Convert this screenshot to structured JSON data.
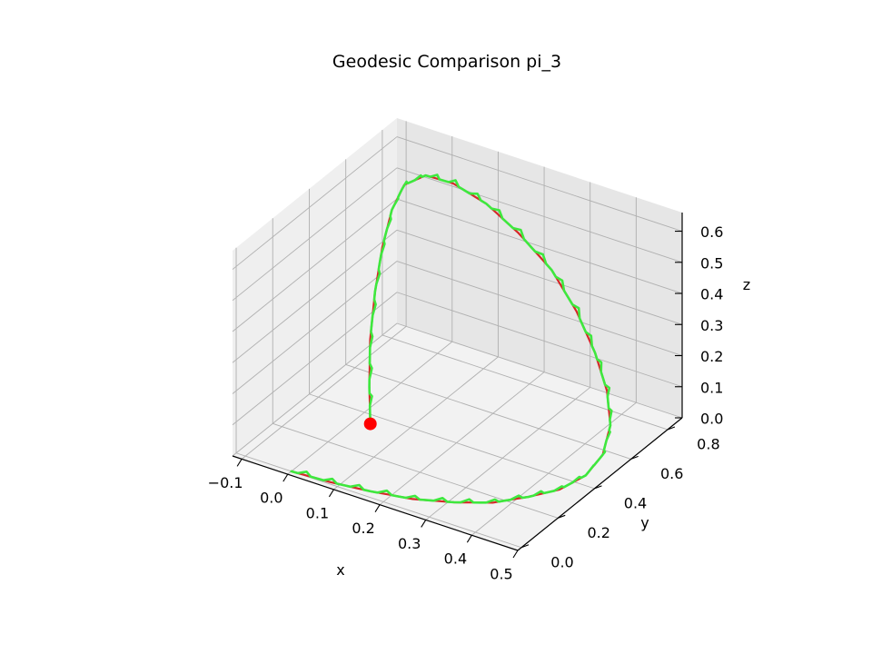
{
  "chart_data": {
    "type": "line3d",
    "title": "Geodesic Comparison pi_3",
    "xlabel": "x",
    "ylabel": "y",
    "zlabel": "z",
    "xlim": [
      -0.12,
      0.5
    ],
    "ylim": [
      -0.02,
      0.88
    ],
    "zlim": [
      0.0,
      0.66
    ],
    "x_ticks": [
      -0.1,
      0.0,
      0.1,
      0.2,
      0.3,
      0.4,
      0.5
    ],
    "x_tick_labels": [
      "−0.1",
      "0.0",
      "0.1",
      "0.2",
      "0.3",
      "0.4",
      "0.5"
    ],
    "y_ticks": [
      0.0,
      0.2,
      0.4,
      0.6,
      0.8
    ],
    "y_tick_labels": [
      "0.0",
      "0.2",
      "0.4",
      "0.6",
      "0.8"
    ],
    "z_ticks": [
      0.0,
      0.1,
      0.2,
      0.3,
      0.4,
      0.5,
      0.6
    ],
    "z_tick_labels": [
      "0.0",
      "0.1",
      "0.2",
      "0.3",
      "0.4",
      "0.5",
      "0.6"
    ],
    "grid": true,
    "series": [
      {
        "style": "line",
        "color": "#d62728",
        "points": [
          [
            0.0,
            0.0,
            0.0
          ],
          [
            0.08,
            0.01,
            0.0
          ],
          [
            0.16,
            0.03,
            0.0
          ],
          [
            0.24,
            0.06,
            0.0
          ],
          [
            0.31,
            0.11,
            0.0
          ],
          [
            0.37,
            0.17,
            0.0
          ],
          [
            0.42,
            0.24,
            0.01
          ],
          [
            0.46,
            0.31,
            0.02
          ],
          [
            0.485,
            0.39,
            0.04
          ],
          [
            0.49,
            0.47,
            0.07
          ],
          [
            0.475,
            0.55,
            0.12
          ],
          [
            0.44,
            0.62,
            0.18
          ],
          [
            0.39,
            0.68,
            0.25
          ],
          [
            0.33,
            0.73,
            0.33
          ],
          [
            0.26,
            0.77,
            0.41
          ],
          [
            0.18,
            0.79,
            0.48
          ],
          [
            0.11,
            0.79,
            0.54
          ],
          [
            0.05,
            0.76,
            0.59
          ],
          [
            0.01,
            0.71,
            0.62
          ],
          [
            -0.005,
            0.63,
            0.62
          ],
          [
            0.0,
            0.55,
            0.58
          ],
          [
            0.015,
            0.46,
            0.51
          ],
          [
            0.035,
            0.37,
            0.42
          ],
          [
            0.06,
            0.28,
            0.32
          ],
          [
            0.09,
            0.2,
            0.22
          ],
          [
            0.12,
            0.13,
            0.15
          ]
        ]
      },
      {
        "style": "line",
        "color": "#3ee83e",
        "points": [
          [
            0.0,
            0.0,
            0.0
          ],
          [
            0.08,
            0.01,
            0.0
          ],
          [
            0.16,
            0.03,
            0.0
          ],
          [
            0.24,
            0.06,
            0.0
          ],
          [
            0.31,
            0.11,
            0.0
          ],
          [
            0.37,
            0.17,
            0.0
          ],
          [
            0.42,
            0.24,
            0.01
          ],
          [
            0.46,
            0.31,
            0.02
          ],
          [
            0.485,
            0.39,
            0.04
          ],
          [
            0.49,
            0.47,
            0.07
          ],
          [
            0.475,
            0.55,
            0.12
          ],
          [
            0.44,
            0.62,
            0.18
          ],
          [
            0.39,
            0.68,
            0.25
          ],
          [
            0.33,
            0.73,
            0.33
          ],
          [
            0.26,
            0.77,
            0.41
          ],
          [
            0.18,
            0.79,
            0.48
          ],
          [
            0.11,
            0.79,
            0.54
          ],
          [
            0.05,
            0.76,
            0.59
          ],
          [
            0.01,
            0.71,
            0.62
          ],
          [
            -0.005,
            0.63,
            0.62
          ],
          [
            0.0,
            0.55,
            0.58
          ],
          [
            0.015,
            0.46,
            0.51
          ],
          [
            0.035,
            0.37,
            0.42
          ],
          [
            0.06,
            0.28,
            0.32
          ],
          [
            0.09,
            0.2,
            0.22
          ],
          [
            0.12,
            0.13,
            0.15
          ]
        ]
      }
    ],
    "markers": [
      {
        "style": "point",
        "color": "#ff0000",
        "point": [
          0.12,
          0.13,
          0.15
        ]
      }
    ]
  }
}
